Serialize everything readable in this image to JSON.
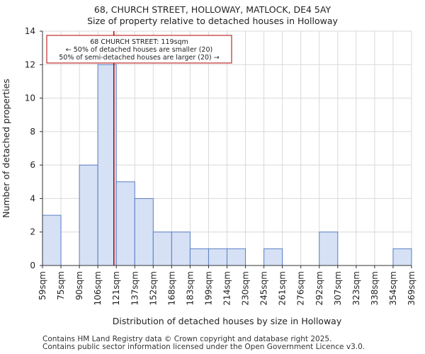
{
  "title": "68, CHURCH STREET, HOLLOWAY, MATLOCK, DE4 5AY",
  "subtitle": "Size of property relative to detached houses in Holloway",
  "footer": [
    "Contains HM Land Registry data © Crown copyright and database right 2025.",
    "Contains public sector information licensed under the Open Government Licence v3.0."
  ],
  "colors": {
    "bar_fill": "#d6e1f5",
    "bar_stroke": "#5b7ec4",
    "marker": "#b30000",
    "grid": "#d9d9d9"
  },
  "chart_data": {
    "type": "histogram",
    "xlabel": "Distribution of detached houses by size in Holloway",
    "ylabel": "Number of detached properties",
    "ylim": [
      0,
      14
    ],
    "yticks": [
      0,
      2,
      4,
      6,
      8,
      10,
      12,
      14
    ],
    "bin_edges": [
      59,
      75,
      90,
      106,
      121,
      137,
      152,
      168,
      183,
      199,
      214,
      230,
      245,
      261,
      276,
      292,
      307,
      323,
      338,
      354,
      369
    ],
    "tick_labels": [
      "59sqm",
      "75sqm",
      "90sqm",
      "106sqm",
      "121sqm",
      "137sqm",
      "152sqm",
      "168sqm",
      "183sqm",
      "199sqm",
      "214sqm",
      "230sqm",
      "245sqm",
      "261sqm",
      "276sqm",
      "292sqm",
      "307sqm",
      "323sqm",
      "338sqm",
      "354sqm",
      "369sqm"
    ],
    "values": [
      3,
      0,
      6,
      12,
      5,
      4,
      2,
      2,
      1,
      1,
      1,
      0,
      1,
      0,
      0,
      2,
      0,
      0,
      0,
      1
    ],
    "marker": {
      "value": 119,
      "label": "68 CHURCH STREET: 119sqm"
    },
    "annotation": [
      "68 CHURCH STREET: 119sqm",
      "← 50% of detached houses are smaller (20)",
      "50% of semi-detached houses are larger (20) →"
    ],
    "grid": true
  }
}
